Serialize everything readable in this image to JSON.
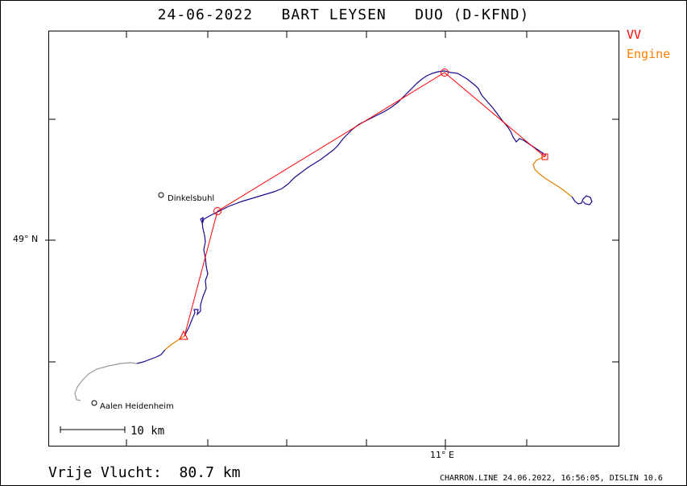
{
  "header": {
    "title": "24-06-2022   BART LEYSEN   DUO (D-KFND)"
  },
  "legend": {
    "vv_label": "VV",
    "engine_label": "Engine",
    "vv_color": "#ff0000",
    "engine_color": "#ff8000"
  },
  "axes": {
    "lat_label": "49° N",
    "lon_label": "11° E"
  },
  "places": [
    {
      "name": "Dinkelsbuhl"
    },
    {
      "name": "Aalen Heidenheim"
    }
  ],
  "scale_bar": {
    "label": "10 km"
  },
  "footer": {
    "distance_text": "Vrije Vlucht:  80.7 km",
    "credit_text": "CHARRON.LINE 24.06.2022, 16:56:05, DISLIN 10.6"
  },
  "colors": {
    "track_flight": "#1a0a8c",
    "track_engine": "#e08000",
    "track_ground": "#9a9a9a",
    "task_line": "#ff0000",
    "frame": "#000000"
  }
}
